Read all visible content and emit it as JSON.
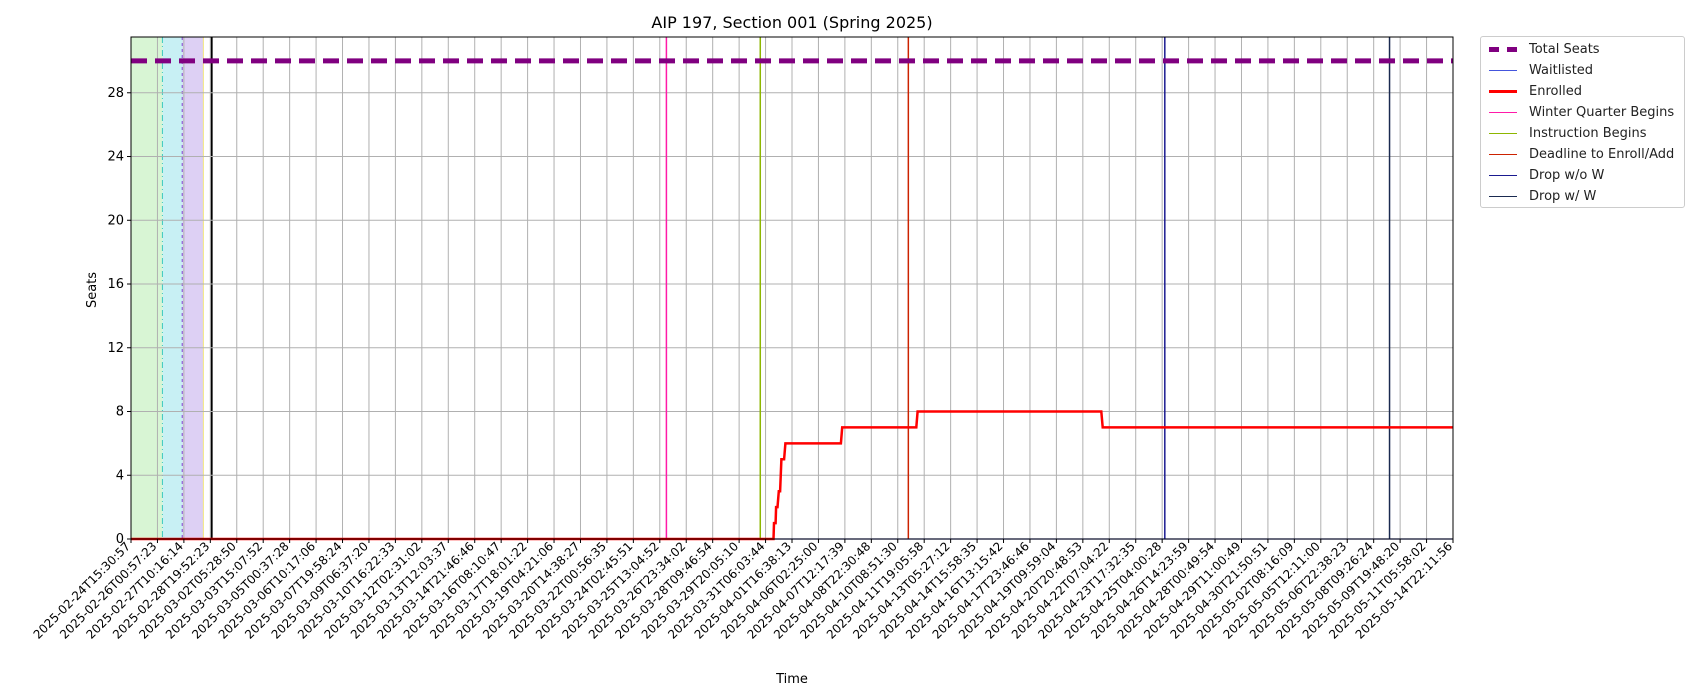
{
  "chart_data": {
    "type": "line",
    "title": "AIP 197, Section 001 (Spring 2025)",
    "xlabel": "Time",
    "ylabel": "Seats",
    "ylim": [
      0,
      31.5
    ],
    "yticks": [
      0,
      4,
      8,
      12,
      16,
      20,
      24,
      28
    ],
    "grid": true,
    "legend_position": "outside-top-right",
    "x_tick_labels": [
      "2025-02-24T15:30:57",
      "2025-02-26T00:57:23",
      "2025-02-27T10:16:14",
      "2025-02-28T19:52:23",
      "2025-03-02T05:28:50",
      "2025-03-03T15:07:52",
      "2025-03-05T00:37:28",
      "2025-03-06T10:17:06",
      "2025-03-07T19:58:24",
      "2025-03-09T06:37:20",
      "2025-03-10T16:22:33",
      "2025-03-12T02:31:02",
      "2025-03-13T12:03:37",
      "2025-03-14T21:46:46",
      "2025-03-16T08:10:47",
      "2025-03-17T18:01:22",
      "2025-03-19T04:21:06",
      "2025-03-20T14:38:27",
      "2025-03-22T00:56:35",
      "2025-03-24T02:45:51",
      "2025-03-25T13:04:52",
      "2025-03-26T23:34:02",
      "2025-03-28T09:46:54",
      "2025-03-29T20:05:10",
      "2025-03-31T06:03:44",
      "2025-04-01T16:38:13",
      "2025-04-06T02:25:00",
      "2025-04-07T12:17:39",
      "2025-04-08T22:30:48",
      "2025-04-10T08:51:30",
      "2025-04-11T19:05:58",
      "2025-04-13T05:27:12",
      "2025-04-14T15:58:35",
      "2025-04-16T13:15:42",
      "2025-04-17T23:46:46",
      "2025-04-19T09:59:04",
      "2025-04-20T20:48:53",
      "2025-04-22T07:04:22",
      "2025-04-23T17:32:35",
      "2025-04-25T04:00:28",
      "2025-04-26T14:23:59",
      "2025-04-28T00:49:54",
      "2025-04-29T11:00:49",
      "2025-04-30T21:50:51",
      "2025-05-02T08:16:09",
      "2025-05-05T12:11:00",
      "2025-05-06T22:38:23",
      "2025-05-08T09:26:24",
      "2025-05-09T19:48:20",
      "2025-05-11T05:58:02",
      "2025-05-14T22:11:56"
    ],
    "series": [
      {
        "name": "Total Seats",
        "color": "#800080",
        "style": "dashed-thick",
        "x_index": [
          0,
          50
        ],
        "values": [
          30,
          30
        ]
      },
      {
        "name": "Waitlisted",
        "color": "#4455dd",
        "style": "solid-thin",
        "x_index": [
          0,
          50
        ],
        "values": [
          0,
          0
        ]
      },
      {
        "name": "Enrolled",
        "color": "#ff0000",
        "style": "solid-thick",
        "x_index": [
          0,
          24.3,
          24.32,
          24.38,
          24.4,
          24.45,
          24.5,
          24.55,
          24.6,
          24.62,
          24.7,
          24.75,
          24.8,
          26.85,
          26.9,
          29.7,
          29.75,
          36.7,
          36.75,
          50
        ],
        "values": [
          0,
          0,
          1,
          1,
          2,
          2,
          3,
          3,
          5,
          5,
          5,
          6,
          6,
          6,
          7,
          7,
          8,
          8,
          7,
          7
        ]
      }
    ],
    "events": [
      {
        "name": "Winter Quarter Begins",
        "color": "#ff1aa8",
        "x_index": 20.25
      },
      {
        "name": "Instruction Begins",
        "color": "#8db600",
        "x_index": 23.8
      },
      {
        "name": "Deadline to Enroll/Add",
        "color": "#cc2200",
        "x_index": 29.4
      },
      {
        "name": "Drop w/o W",
        "color": "#1a1a90",
        "x_index": 39.1
      },
      {
        "name": "Drop w/ W",
        "color": "#1a2a50",
        "x_index": 47.6
      }
    ],
    "shaded_periods": [
      {
        "color": "#d8f5d4",
        "x_start": 0,
        "x_end": 1.2,
        "boundary_color": "#18c0b0"
      },
      {
        "color": "#c8f0f4",
        "x_start": 1.2,
        "x_end": 1.95,
        "boundary_color": "#6a1fc8"
      },
      {
        "color": "#ddd0f4",
        "x_start": 1.95,
        "x_end": 2.75,
        "boundary_color": "#f0e060"
      },
      {
        "color": "#ffffff",
        "x_start": 2.75,
        "x_end": 3.05,
        "boundary_color": "#000000"
      }
    ]
  }
}
